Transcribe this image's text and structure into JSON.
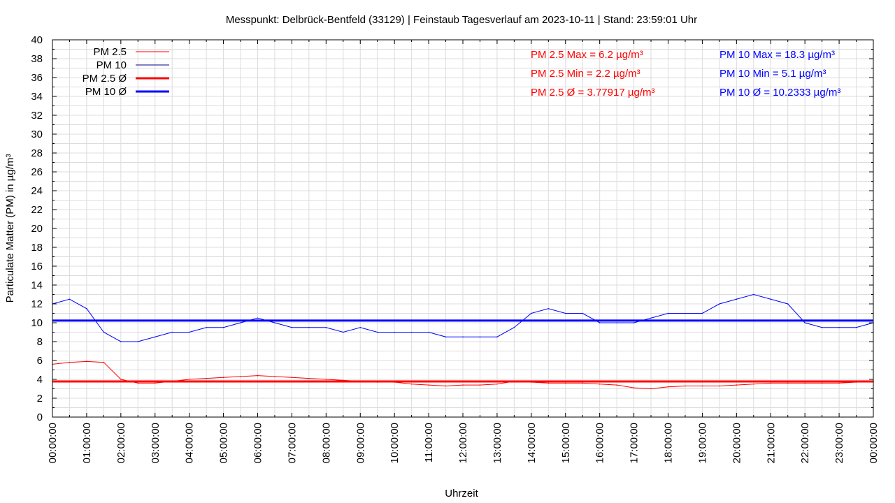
{
  "chart_data": {
    "type": "line",
    "title": "Messpunkt: Delbrück-Bentfeld (33129) | Feinstaub Tagesverlauf am 2023-10-11 | Stand: 23:59:01 Uhr",
    "xlabel": "Uhrzeit",
    "ylabel": "Particulate Matter (PM) in µg/m³",
    "ylim": [
      0,
      40
    ],
    "xlim_hours": [
      0,
      24
    ],
    "yticks": [
      "0",
      "2",
      "4",
      "6",
      "8",
      "10",
      "12",
      "14",
      "16",
      "18",
      "20",
      "22",
      "24",
      "26",
      "28",
      "30",
      "32",
      "34",
      "36",
      "38",
      "40"
    ],
    "xticks": [
      "00:00:00",
      "01:00:00",
      "02:00:00",
      "03:00:00",
      "04:00:00",
      "05:00:00",
      "06:00:00",
      "07:00:00",
      "08:00:00",
      "09:00:00",
      "10:00:00",
      "11:00:00",
      "12:00:00",
      "13:00:00",
      "14:00:00",
      "15:00:00",
      "16:00:00",
      "17:00:00",
      "18:00:00",
      "19:00:00",
      "20:00:00",
      "21:00:00",
      "22:00:00",
      "23:00:00",
      "00:00:00"
    ],
    "grid": true,
    "legend_position": "top-left",
    "x_step_hours": 0.5,
    "series": [
      {
        "name": "PM 2.5",
        "color": "#ff0000",
        "width": 1,
        "values": [
          5.6,
          5.8,
          5.9,
          5.8,
          4.0,
          3.6,
          3.6,
          3.8,
          4.0,
          4.1,
          4.2,
          4.3,
          4.4,
          4.3,
          4.2,
          4.1,
          4.0,
          3.9,
          3.8,
          3.7,
          3.7,
          3.5,
          3.4,
          3.3,
          3.4,
          3.4,
          3.5,
          3.8,
          3.7,
          3.6,
          3.6,
          3.6,
          3.5,
          3.4,
          3.1,
          3.0,
          3.2,
          3.3,
          3.3,
          3.3,
          3.4,
          3.5,
          3.6,
          3.6,
          3.6,
          3.6,
          3.6,
          3.7,
          3.8
        ]
      },
      {
        "name": "PM 10",
        "color": "#0000ff",
        "width": 1,
        "values": [
          12,
          12.5,
          11.5,
          9,
          8,
          8,
          8.5,
          9,
          9,
          9.5,
          9.5,
          10,
          10.5,
          10,
          9.5,
          9.5,
          9.5,
          9,
          9.5,
          9,
          9,
          9,
          9,
          8.5,
          8.5,
          8.5,
          8.5,
          9.5,
          11,
          11.5,
          11,
          11,
          10,
          10,
          10,
          10.5,
          11,
          11,
          11,
          12,
          12.5,
          13,
          12.5,
          12,
          10,
          9.5,
          9.5,
          9.5,
          10
        ]
      },
      {
        "name": "PM 2.5 Ø",
        "color": "#ff0000",
        "width": 3,
        "constant": 3.77917
      },
      {
        "name": "PM 10 Ø",
        "color": "#0000ff",
        "width": 3,
        "constant": 10.2333
      }
    ],
    "annotations": {
      "pm25": [
        "PM 2.5 Max = 6.2 µg/m³",
        "PM 2.5 Min = 2.2 µg/m³",
        "PM 2.5 Ø = 3.77917 µg/m³"
      ],
      "pm10": [
        "PM 10 Max = 18.3 µg/m³",
        "PM 10 Min = 5.1 µg/m³",
        "PM 10 Ø = 10.2333 µg/m³"
      ]
    }
  }
}
